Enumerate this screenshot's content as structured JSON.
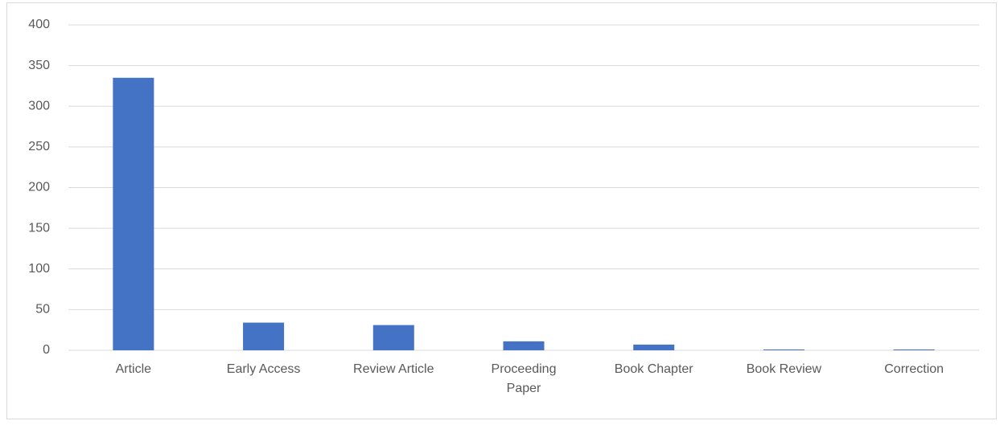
{
  "chart_data": {
    "type": "bar",
    "categories": [
      "Article",
      "Early Access",
      "Review Article",
      "Proceeding Paper",
      "Book Chapter",
      "Book Review",
      "Correction"
    ],
    "values": [
      335,
      34,
      31,
      11,
      7,
      1,
      1
    ],
    "color": "#4472c4",
    "ylim": [
      0,
      400
    ],
    "yticks": [
      0,
      50,
      100,
      150,
      200,
      250,
      300,
      350,
      400
    ],
    "grid": true
  }
}
